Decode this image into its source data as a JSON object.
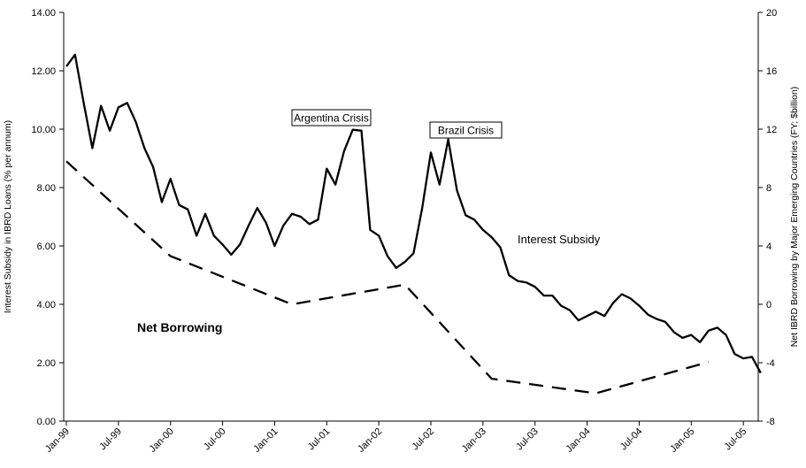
{
  "chart_data": {
    "type": "line",
    "title": "",
    "ylabel_left": "Interest Subsidy in IBRD Loans (% per annum)",
    "ylabel_right": "Net IBRD Borrowing by Major Emerging Countries (FY; $billion)",
    "ylim_left": [
      0,
      14
    ],
    "ylim_right": [
      -8,
      20
    ],
    "yticks_left": [
      "0.00",
      "2.00",
      "4.00",
      "6.00",
      "8.00",
      "10.00",
      "12.00",
      "14.00"
    ],
    "yticks_right": [
      "-8",
      "-4",
      "0",
      "4",
      "8",
      "12",
      "16",
      "20"
    ],
    "x_tick_labels": [
      "Jan-99",
      "Jul-99",
      "Jan-00",
      "Jul-00",
      "Jan-01",
      "Jul-01",
      "Jan-02",
      "Jul-02",
      "Jan-03",
      "Jul-03",
      "Jan-04",
      "Jul-04",
      "Jan-05",
      "Jul-05"
    ],
    "x_start": "Jan-99",
    "grid": false,
    "series": [
      {
        "name": "Interest Subsidy",
        "axis": "left",
        "style": "solid",
        "color": "#000000",
        "values": [
          12.15,
          12.55,
          10.9,
          9.35,
          10.8,
          9.95,
          10.75,
          10.9,
          10.25,
          9.35,
          8.7,
          7.5,
          8.3,
          7.4,
          7.25,
          6.35,
          7.1,
          6.35,
          6.05,
          5.7,
          6.05,
          6.7,
          7.3,
          6.8,
          6.0,
          6.7,
          7.1,
          7.0,
          6.75,
          6.9,
          8.65,
          8.1,
          9.25,
          9.98,
          9.95,
          6.55,
          6.35,
          5.65,
          5.25,
          5.45,
          5.75,
          7.3,
          9.2,
          8.1,
          9.65,
          7.9,
          7.05,
          6.9,
          6.55,
          6.3,
          5.95,
          5.0,
          4.8,
          4.75,
          4.6,
          4.3,
          4.3,
          3.95,
          3.8,
          3.45,
          3.6,
          3.75,
          3.6,
          4.05,
          4.35,
          4.2,
          3.95,
          3.65,
          3.5,
          3.4,
          3.05,
          2.85,
          2.95,
          2.7,
          3.1,
          3.2,
          2.95,
          2.3,
          2.15,
          2.2,
          1.65
        ]
      },
      {
        "name": "Net Borrowing",
        "axis": "right",
        "style": "dashed",
        "color": "#000000",
        "points": [
          {
            "x": "Jan-99",
            "y": 9.8
          },
          {
            "x": "Jan-00",
            "y": 3.3
          },
          {
            "x": "Mar-01",
            "y": 0.0
          },
          {
            "x": "Apr-02",
            "y": 1.35
          },
          {
            "x": "Feb-03",
            "y": -5.1
          },
          {
            "x": "Feb-04",
            "y": -6.1
          },
          {
            "x": "Mar-05",
            "y": -3.95
          }
        ]
      }
    ],
    "annotations": {
      "argentina": "Argentina Crisis",
      "brazil": "Brazil Crisis",
      "interest_label": "Interest Subsidy",
      "borrowing_label": "Net Borrowing"
    }
  }
}
